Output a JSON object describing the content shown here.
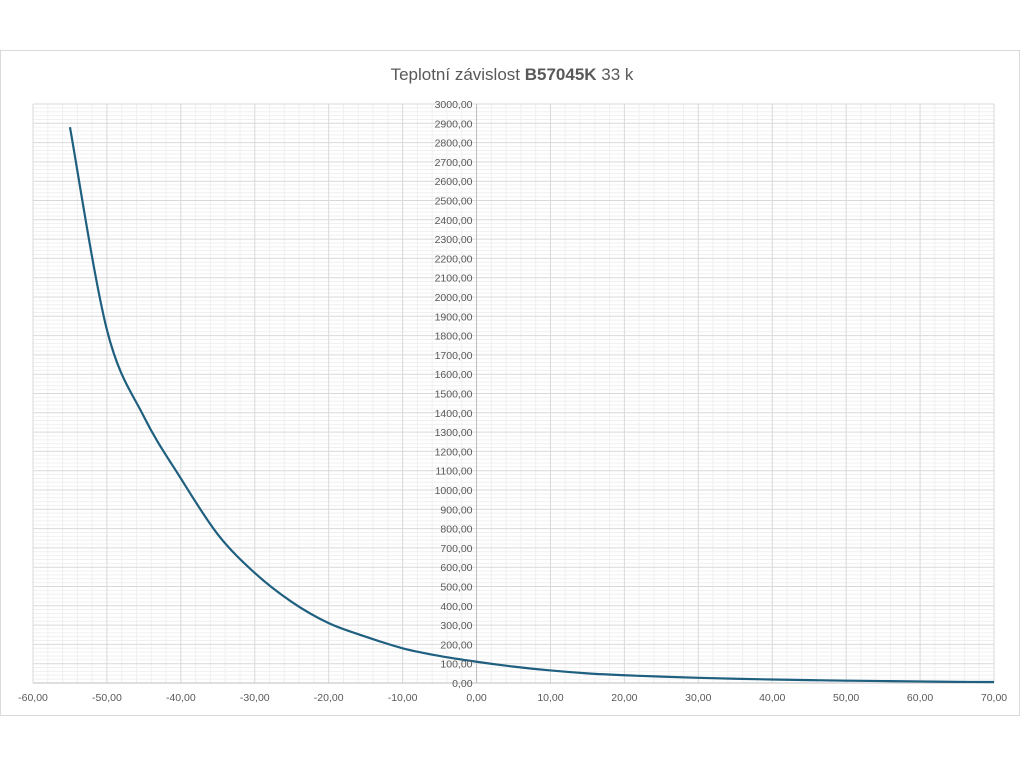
{
  "chart_data": {
    "type": "line",
    "title_prefix": "Teplotní závislost ",
    "title_bold": "B57045K",
    "title_suffix": " 33 k",
    "xlim": [
      -60,
      70
    ],
    "ylim": [
      0,
      3000
    ],
    "x_ticks": [
      "-60,00",
      "-50,00",
      "-40,00",
      "-30,00",
      "-20,00",
      "-10,00",
      "0,00",
      "10,00",
      "20,00",
      "30,00",
      "40,00",
      "50,00",
      "60,00",
      "70,00"
    ],
    "y_ticks": [
      "0,00",
      "100,00",
      "200,00",
      "300,00",
      "400,00",
      "500,00",
      "600,00",
      "700,00",
      "800,00",
      "900,00",
      "1000,00",
      "1100,00",
      "1200,00",
      "1300,00",
      "1400,00",
      "1500,00",
      "1600,00",
      "1700,00",
      "1800,00",
      "1900,00",
      "2000,00",
      "2100,00",
      "2200,00",
      "2300,00",
      "2400,00",
      "2500,00",
      "2600,00",
      "2700,00",
      "2800,00",
      "2900,00",
      "3000,00"
    ],
    "grid": true,
    "series": [
      {
        "color": "#1f5f7f",
        "x": [
          -55,
          -50,
          -45,
          -40,
          -35,
          -30,
          -25,
          -20,
          -15,
          -10,
          -5,
          0,
          5,
          10,
          15,
          20,
          25,
          30,
          35,
          40,
          45,
          50,
          55,
          60,
          65,
          70
        ],
        "y": [
          2880,
          1830,
          1380,
          1060,
          770,
          570,
          420,
          310,
          240,
          180,
          140,
          110,
          85,
          65,
          50,
          40,
          33,
          27,
          22,
          18,
          15,
          12,
          10,
          8,
          6,
          5
        ]
      }
    ]
  }
}
